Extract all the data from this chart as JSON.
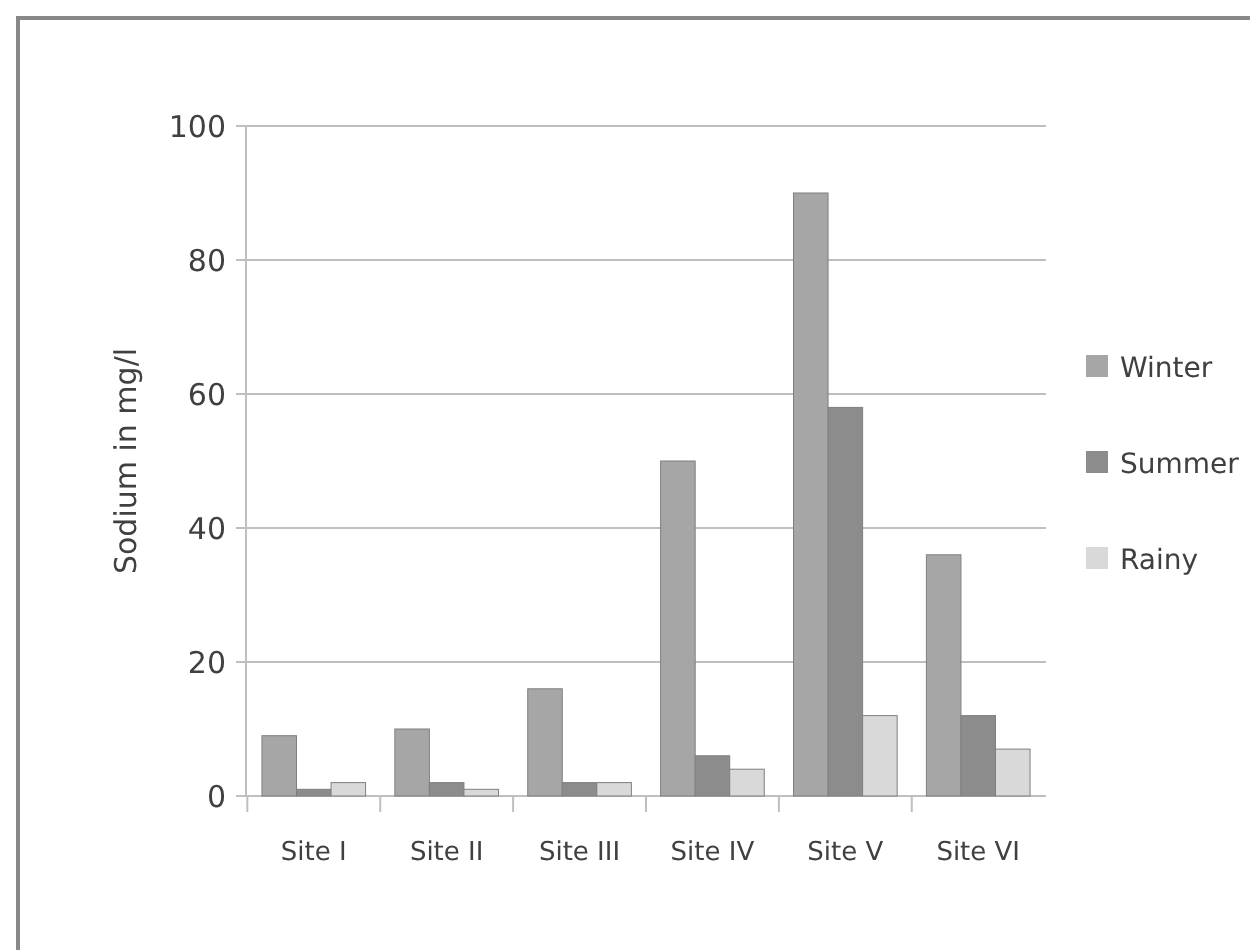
{
  "chart_data": {
    "type": "bar",
    "ylabel": "Sodium in mg/l",
    "categories": [
      "Site I",
      "Site II",
      "Site III",
      "Site IV",
      "Site V",
      "Site VI"
    ],
    "series": [
      {
        "name": "Winter",
        "color": "#a6a6a6",
        "values": [
          9,
          10,
          16,
          50,
          90,
          36
        ]
      },
      {
        "name": "Summer",
        "color": "#8c8c8c",
        "values": [
          1,
          2,
          2,
          6,
          58,
          12
        ]
      },
      {
        "name": "Rainy",
        "color": "#d9d9d9",
        "values": [
          2,
          1,
          2,
          4,
          12,
          7
        ]
      }
    ],
    "ylim": [
      0,
      100
    ],
    "yticks": [
      0,
      20,
      40,
      60,
      80,
      100
    ],
    "grid": "y",
    "legend": "right"
  }
}
